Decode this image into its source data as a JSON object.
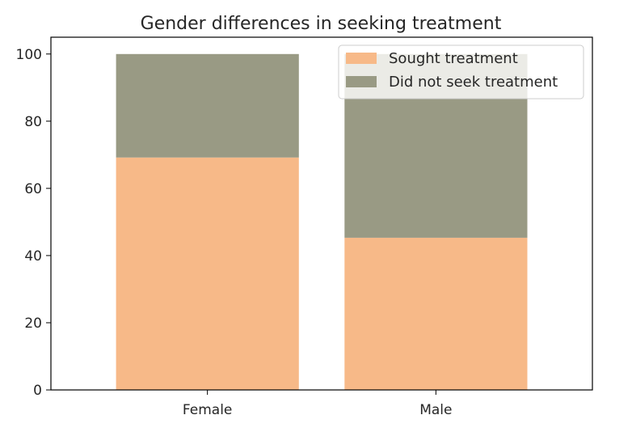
{
  "chart_data": {
    "type": "bar",
    "stacked": true,
    "title": "Gender differences in seeking treatment",
    "xlabel": "",
    "ylabel": "",
    "categories": [
      "Female",
      "Male"
    ],
    "series": [
      {
        "name": "Sought treatment",
        "values": [
          69.2,
          45.3
        ],
        "color": "#f7b988"
      },
      {
        "name": "Did not seek treatment",
        "values": [
          30.8,
          54.7
        ],
        "color": "#999a84"
      }
    ],
    "ylim": [
      0,
      105
    ],
    "yticks": [
      0,
      20,
      40,
      60,
      80,
      100
    ],
    "grid": false,
    "legend_position": "top-right"
  }
}
